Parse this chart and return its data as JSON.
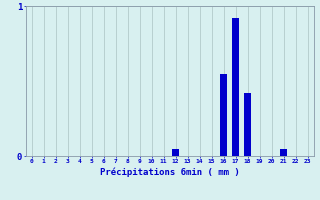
{
  "categories": [
    0,
    1,
    2,
    3,
    4,
    5,
    6,
    7,
    8,
    9,
    10,
    11,
    12,
    13,
    14,
    15,
    16,
    17,
    18,
    19,
    20,
    21,
    22,
    23
  ],
  "values": [
    0,
    0,
    0,
    0,
    0,
    0,
    0,
    0,
    0,
    0,
    0,
    0,
    0.05,
    0,
    0,
    0,
    0.55,
    0.92,
    0.42,
    0,
    0,
    0.05,
    0,
    0
  ],
  "bar_color": "#0000cc",
  "bg_color": "#d8f0f0",
  "grid_color": "#b8d0d0",
  "axis_color": "#8898a8",
  "text_color": "#0000cc",
  "xlabel": "Précipitations 6min ( mm )",
  "ylim": [
    0,
    1.0
  ],
  "yticks": [
    0,
    1
  ],
  "bar_width": 0.6
}
